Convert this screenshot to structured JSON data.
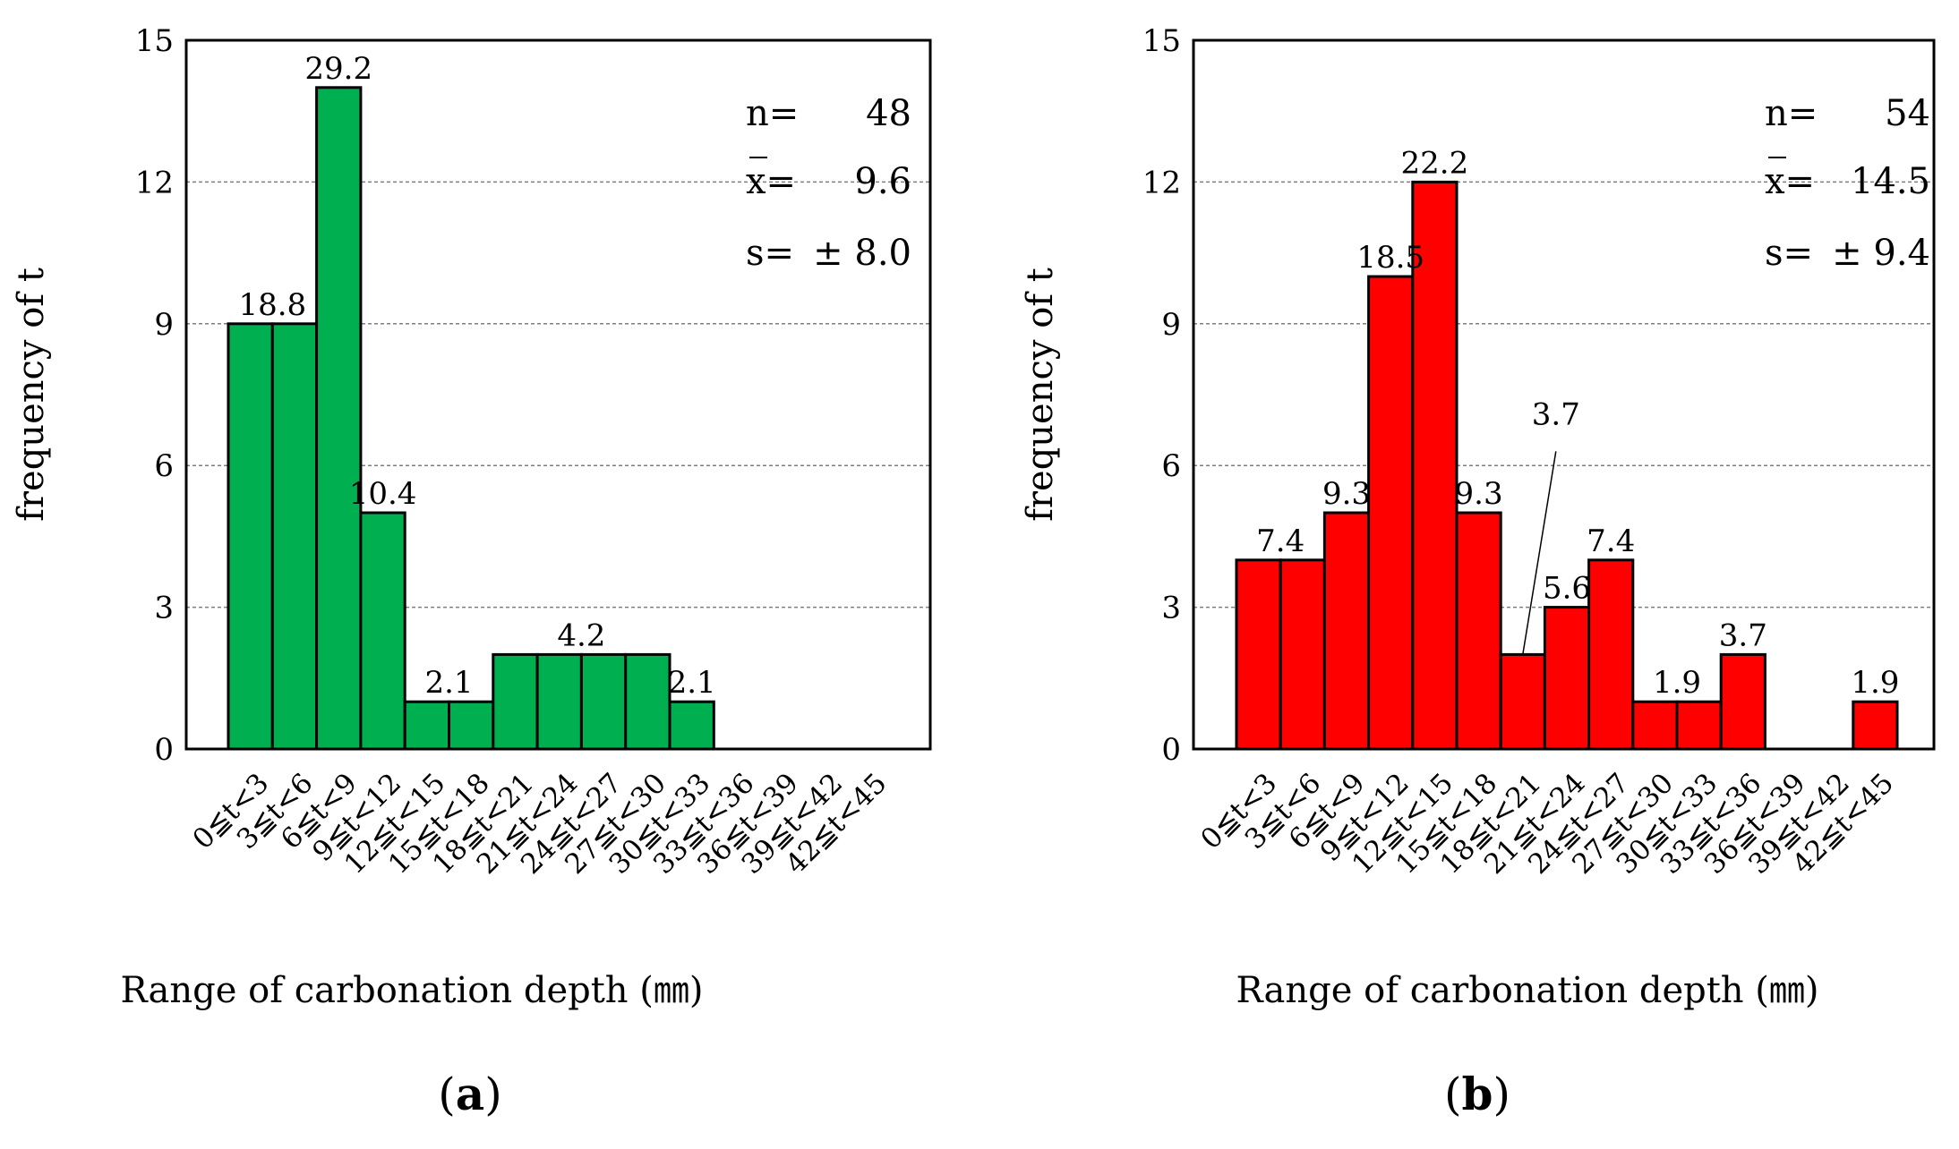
{
  "chart_data": [
    {
      "type": "bar",
      "panel_label": "a",
      "categories": [
        "0≦t<3",
        "3≦t<6",
        "6≦t<9",
        "9≦t<12",
        "12≦t<15",
        "15≦t<18",
        "18≦t<21",
        "21≦t<24",
        "24≦t<27",
        "27≦t<30",
        "30≦t<33",
        "33≦t<36",
        "36≦t<39",
        "39≦t<42",
        "42≦t<45"
      ],
      "values": [
        9,
        9,
        14,
        5,
        1,
        1,
        2,
        2,
        2,
        2,
        1,
        0,
        0,
        0,
        0
      ],
      "value_labels": [
        {
          "index": 0.5,
          "text": "18.8"
        },
        {
          "index": 2,
          "text": "29.2"
        },
        {
          "index": 3,
          "text": "10.4"
        },
        {
          "index": 4.5,
          "text": "2.1"
        },
        {
          "index": 7.5,
          "text": "4.2"
        },
        {
          "index": 10,
          "text": "2.1"
        }
      ],
      "color": "#00b050",
      "xlabel": "Range of carbonation depth (㎜)",
      "ylabel": "frequency of t",
      "ylim": [
        0,
        15
      ],
      "yticks": [
        0,
        3,
        6,
        9,
        12,
        15
      ],
      "stats": {
        "n_label": "n=",
        "n": "48",
        "mean_label": "x=",
        "mean": "9.6",
        "sd_label": "s=",
        "sd": "± 8.0"
      }
    },
    {
      "type": "bar",
      "panel_label": "b",
      "categories": [
        "0≦t<3",
        "3≦t<6",
        "6≦t<9",
        "9≦t<12",
        "12≦t<15",
        "15≦t<18",
        "18≦t<21",
        "21≦t<24",
        "24≦t<27",
        "27≦t<30",
        "30≦t<33",
        "33≦t<36",
        "36≦t<39",
        "39≦t<42",
        "42≦t<45"
      ],
      "values": [
        4,
        4,
        5,
        10,
        12,
        5,
        2,
        3,
        4,
        1,
        1,
        2,
        0,
        0,
        1
      ],
      "value_labels": [
        {
          "index": 0.5,
          "text": "7.4"
        },
        {
          "index": 2,
          "text": "9.3"
        },
        {
          "index": 3,
          "text": "18.5"
        },
        {
          "index": 4,
          "text": "22.2"
        },
        {
          "index": 5,
          "text": "9.3"
        },
        {
          "index": 6,
          "text": "3.7",
          "leader": true
        },
        {
          "index": 7,
          "text": "5.6"
        },
        {
          "index": 8,
          "text": "7.4"
        },
        {
          "index": 9.5,
          "text": "1.9"
        },
        {
          "index": 11,
          "text": "3.7"
        },
        {
          "index": 14,
          "text": "1.9"
        }
      ],
      "color": "#ff0000",
      "xlabel": "Range of carbonation depth (㎜)",
      "ylabel": "frequency of t",
      "ylim": [
        0,
        15
      ],
      "yticks": [
        0,
        3,
        6,
        9,
        12,
        15
      ],
      "stats": {
        "n_label": "n=",
        "n": "54",
        "mean_label": "x=",
        "mean": "14.5",
        "sd_label": "s=",
        "sd": "± 9.4"
      }
    }
  ]
}
